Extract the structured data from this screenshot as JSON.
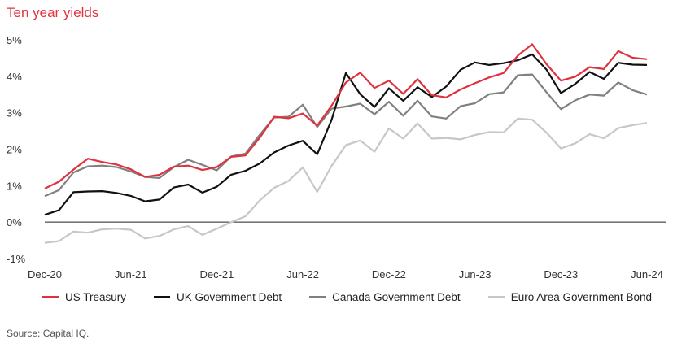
{
  "title": "Ten year yields",
  "source": "Source: Capital IQ.",
  "chart_data": {
    "type": "line",
    "title": "Ten year yields",
    "xlabel": "",
    "ylabel": "",
    "ylim": [
      -1,
      5
    ],
    "y_ticks": [
      "-1%",
      "0%",
      "1%",
      "2%",
      "3%",
      "4%",
      "5%"
    ],
    "y_tick_values": [
      -1,
      0,
      1,
      2,
      3,
      4,
      5
    ],
    "x_tick_labels": [
      "Dec-20",
      "Jun-21",
      "Dec-21",
      "Jun-22",
      "Dec-22",
      "Jun-23",
      "Dec-23",
      "Jun-24"
    ],
    "x": [
      "2020-12",
      "2021-01",
      "2021-02",
      "2021-03",
      "2021-04",
      "2021-05",
      "2021-06",
      "2021-07",
      "2021-08",
      "2021-09",
      "2021-10",
      "2021-11",
      "2021-12",
      "2022-01",
      "2022-02",
      "2022-03",
      "2022-04",
      "2022-05",
      "2022-06",
      "2022-07",
      "2022-08",
      "2022-09",
      "2022-10",
      "2022-11",
      "2022-12",
      "2023-01",
      "2023-02",
      "2023-03",
      "2023-04",
      "2023-05",
      "2023-06",
      "2023-07",
      "2023-08",
      "2023-09",
      "2023-10",
      "2023-11",
      "2023-12",
      "2024-01",
      "2024-02",
      "2024-03",
      "2024-04",
      "2024-05",
      "2024-06"
    ],
    "zero_line": true,
    "grid": false,
    "legend_position": "bottom",
    "series": [
      {
        "name": "US Treasury",
        "color": "#e0323e",
        "values": [
          0.92,
          1.11,
          1.44,
          1.74,
          1.65,
          1.58,
          1.45,
          1.24,
          1.3,
          1.52,
          1.55,
          1.43,
          1.51,
          1.79,
          1.83,
          2.32,
          2.89,
          2.85,
          2.98,
          2.65,
          3.19,
          3.83,
          4.1,
          3.68,
          3.88,
          3.52,
          3.92,
          3.48,
          3.42,
          3.64,
          3.81,
          3.97,
          4.09,
          4.57,
          4.88,
          4.33,
          3.88,
          3.99,
          4.25,
          4.2,
          4.69,
          4.51,
          4.47
        ]
      },
      {
        "name": "UK Government Debt",
        "color": "#111111",
        "values": [
          0.2,
          0.33,
          0.82,
          0.84,
          0.85,
          0.8,
          0.72,
          0.57,
          0.62,
          0.95,
          1.03,
          0.81,
          0.97,
          1.3,
          1.41,
          1.61,
          1.91,
          2.1,
          2.23,
          1.86,
          2.8,
          4.09,
          3.51,
          3.16,
          3.67,
          3.33,
          3.7,
          3.43,
          3.72,
          4.18,
          4.38,
          4.31,
          4.36,
          4.44,
          4.6,
          4.18,
          3.54,
          3.79,
          4.12,
          3.93,
          4.37,
          4.32,
          4.31
        ]
      },
      {
        "name": "Canada Government Debt",
        "color": "#808080",
        "values": [
          0.71,
          0.88,
          1.36,
          1.53,
          1.55,
          1.51,
          1.39,
          1.24,
          1.21,
          1.51,
          1.71,
          1.57,
          1.42,
          1.8,
          1.88,
          2.4,
          2.87,
          2.89,
          3.22,
          2.61,
          3.11,
          3.17,
          3.25,
          2.96,
          3.3,
          2.92,
          3.33,
          2.9,
          2.84,
          3.18,
          3.26,
          3.51,
          3.56,
          4.03,
          4.05,
          3.56,
          3.1,
          3.34,
          3.5,
          3.47,
          3.83,
          3.62,
          3.5
        ]
      },
      {
        "name": "Euro Area Government Bond",
        "color": "#c7c7c7",
        "values": [
          -0.57,
          -0.52,
          -0.26,
          -0.29,
          -0.2,
          -0.18,
          -0.21,
          -0.45,
          -0.38,
          -0.2,
          -0.11,
          -0.35,
          -0.18,
          0.0,
          0.16,
          0.6,
          0.94,
          1.13,
          1.5,
          0.83,
          1.54,
          2.11,
          2.24,
          1.93,
          2.57,
          2.29,
          2.71,
          2.29,
          2.31,
          2.27,
          2.39,
          2.47,
          2.46,
          2.84,
          2.81,
          2.45,
          2.02,
          2.16,
          2.41,
          2.3,
          2.58,
          2.66,
          2.72
        ]
      }
    ]
  }
}
